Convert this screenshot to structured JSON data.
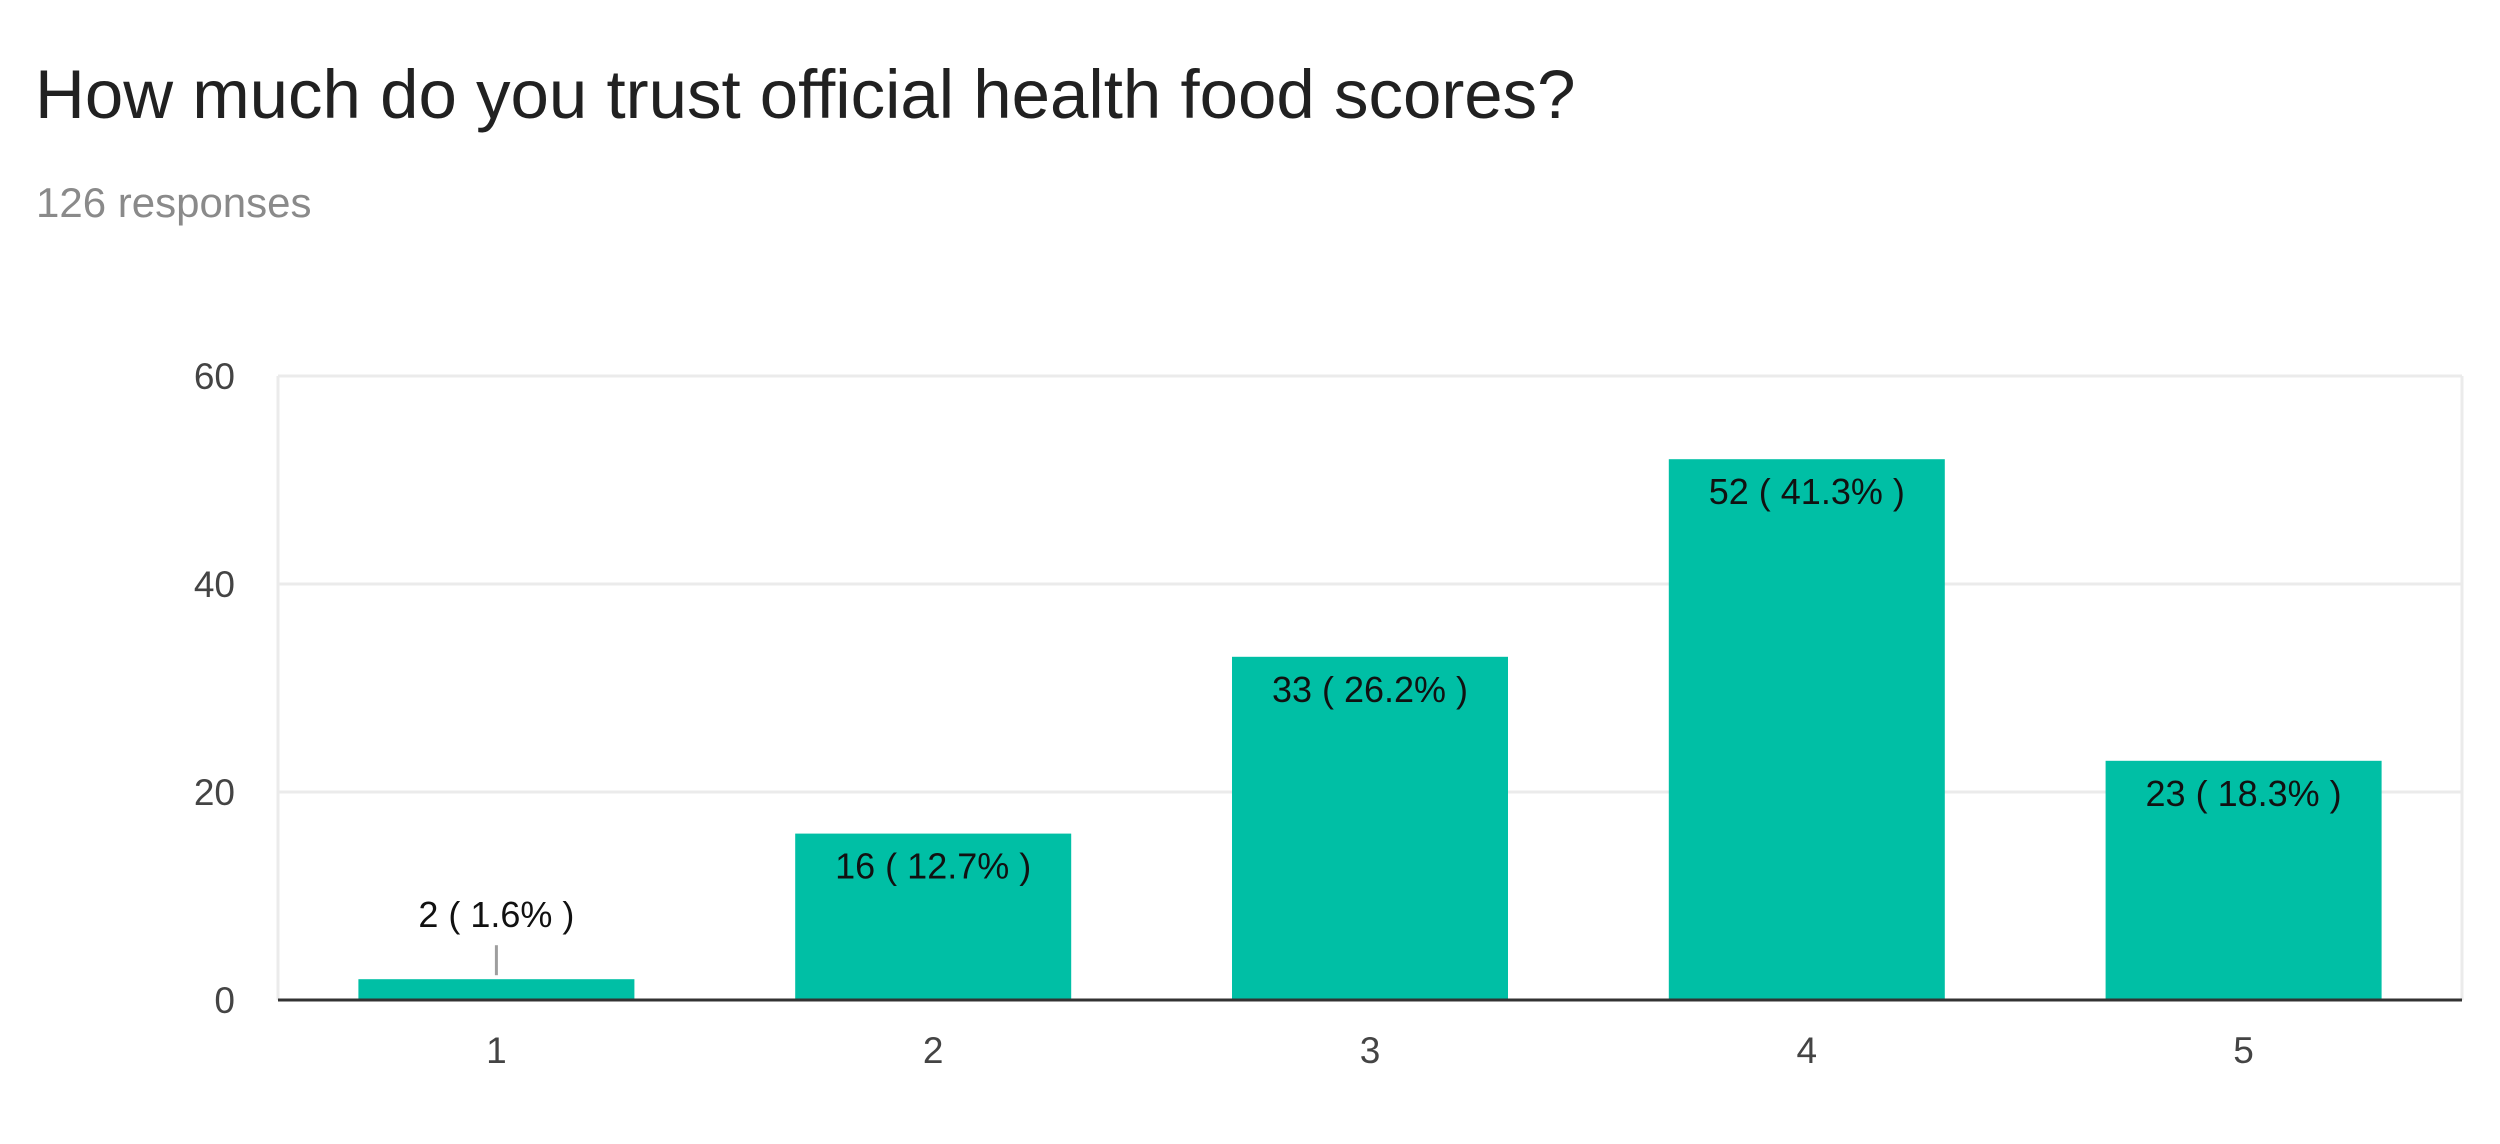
{
  "chart_data": {
    "type": "bar",
    "title": "How much do you trust official health food scores?",
    "subtitle": "126 responses",
    "categories": [
      "1",
      "2",
      "3",
      "4",
      "5"
    ],
    "values": [
      2,
      16,
      33,
      52,
      23
    ],
    "data_labels": [
      "2 ( 1.6% )",
      "16 ( 12.7% )",
      "33 ( 26.2% )",
      "52 ( 41.3% )",
      "23 ( 18.3% )"
    ],
    "xlabel": "",
    "ylabel": "",
    "ylim": [
      0,
      60
    ],
    "yticks": [
      "0",
      "20",
      "40",
      "60"
    ],
    "grid": true,
    "legend": "none",
    "bar_color": "#00bfa5"
  }
}
